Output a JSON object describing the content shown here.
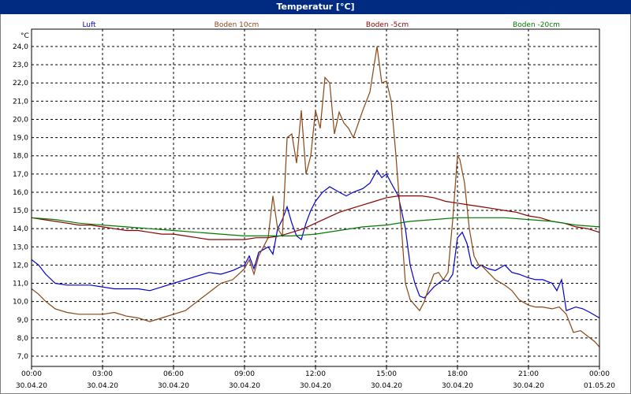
{
  "window_title": "Temperatur [°C]",
  "chart_data": {
    "type": "line",
    "title": "Temperatur [°C]",
    "ylabel": "°C",
    "ylim": [
      7.0,
      24.0
    ],
    "xlim": [
      0,
      24
    ],
    "y_ticks": [
      "7,0",
      "8,0",
      "9,0",
      "10,0",
      "11,0",
      "12,0",
      "13,0",
      "14,0",
      "15,0",
      "16,0",
      "17,0",
      "18,0",
      "19,0",
      "20,0",
      "21,0",
      "22,0",
      "23,0",
      "24,0"
    ],
    "x_ticks": [
      {
        "time": "00:00",
        "date": "30.04.20"
      },
      {
        "time": "03:00",
        "date": "30.04.20"
      },
      {
        "time": "06:00",
        "date": "30.04.20"
      },
      {
        "time": "09:00",
        "date": "30.04.20"
      },
      {
        "time": "12:00",
        "date": "30.04.20"
      },
      {
        "time": "15:00",
        "date": "30.04.20"
      },
      {
        "time": "18:00",
        "date": "30.04.20"
      },
      {
        "time": "21:00",
        "date": "30.04.20"
      },
      {
        "time": "00:00",
        "date": "01.05.20"
      }
    ],
    "grid": true,
    "legend_position": "top",
    "series": [
      {
        "name": "Luft",
        "color": "#0000cc",
        "x": [
          0,
          0.3,
          0.6,
          1,
          1.5,
          2,
          2.5,
          3,
          3.5,
          4,
          4.5,
          5,
          5.5,
          6,
          6.5,
          7,
          7.5,
          8,
          8.5,
          9,
          9.2,
          9.4,
          9.6,
          10,
          10.2,
          10.4,
          10.6,
          10.8,
          11,
          11.2,
          11.4,
          11.6,
          11.8,
          12,
          12.3,
          12.6,
          13,
          13.3,
          13.6,
          14,
          14.3,
          14.6,
          14.8,
          15,
          15.2,
          15.5,
          15.8,
          16,
          16.2,
          16.4,
          16.6,
          16.8,
          17,
          17.2,
          17.4,
          17.6,
          17.8,
          18,
          18.2,
          18.4,
          18.6,
          18.8,
          19,
          19.3,
          19.6,
          20,
          20.3,
          20.6,
          21,
          21.3,
          21.6,
          22,
          22.2,
          22.4,
          22.6,
          23,
          23.3,
          23.6,
          24
        ],
        "y": [
          12.3,
          12,
          11.5,
          11,
          10.9,
          10.9,
          10.9,
          10.8,
          10.7,
          10.7,
          10.7,
          10.6,
          10.8,
          11,
          11.2,
          11.4,
          11.6,
          11.5,
          11.7,
          12,
          12.5,
          11.8,
          12.7,
          13,
          12.6,
          14,
          14.5,
          15.2,
          14.3,
          13.6,
          13.4,
          14.3,
          15,
          15.5,
          16,
          16.3,
          16,
          15.8,
          16,
          16.2,
          16.5,
          17.2,
          16.8,
          17,
          16.5,
          15.8,
          14,
          12,
          11,
          10.3,
          10.2,
          10.5,
          10.8,
          11,
          11.2,
          11.1,
          11.5,
          13.5,
          13.8,
          13.2,
          12,
          11.8,
          12,
          11.8,
          11.7,
          12,
          11.6,
          11.5,
          11.3,
          11.2,
          11.2,
          11,
          10.6,
          11.2,
          9.5,
          9.7,
          9.6,
          9.4,
          9.1
        ]
      },
      {
        "name": "Boden 10cm",
        "color": "#8b4513",
        "x": [
          0,
          0.3,
          0.6,
          1,
          1.5,
          2,
          2.5,
          3,
          3.5,
          4,
          4.5,
          5,
          5.5,
          6,
          6.5,
          7,
          7.5,
          8,
          8.5,
          9,
          9.2,
          9.4,
          9.6,
          9.8,
          10,
          10.2,
          10.4,
          10.6,
          10.8,
          11,
          11.2,
          11.4,
          11.6,
          11.8,
          12,
          12.2,
          12.4,
          12.6,
          12.8,
          13,
          13.2,
          13.4,
          13.6,
          14,
          14.3,
          14.6,
          14.8,
          15,
          15.2,
          15.4,
          15.6,
          15.8,
          16,
          16.2,
          16.4,
          16.6,
          16.8,
          17,
          17.2,
          17.4,
          17.6,
          17.8,
          18,
          18.1,
          18.3,
          18.5,
          18.7,
          18.9,
          19,
          19.3,
          19.6,
          20,
          20.3,
          20.6,
          21,
          21.3,
          21.6,
          22,
          22.3,
          22.6,
          22.9,
          23.2,
          23.5,
          23.8,
          24
        ],
        "y": [
          10.7,
          10.4,
          10,
          9.6,
          9.4,
          9.3,
          9.3,
          9.3,
          9.4,
          9.2,
          9.1,
          8.9,
          9.1,
          9.3,
          9.5,
          10,
          10.5,
          11,
          11.2,
          11.8,
          12.3,
          11.5,
          12.5,
          13,
          13.5,
          15.8,
          14,
          13.6,
          19,
          19.2,
          17.6,
          20.5,
          17,
          18,
          20.5,
          19.5,
          22.3,
          22,
          19.2,
          20.4,
          19.8,
          19.5,
          19,
          20.5,
          21.5,
          24,
          22,
          22.1,
          21,
          18,
          14.6,
          11,
          10.1,
          9.8,
          9.5,
          10,
          10.8,
          11.5,
          11.6,
          11.2,
          11.6,
          14.5,
          18,
          17.8,
          16.5,
          14,
          12.5,
          12,
          12,
          11.6,
          11.2,
          10.9,
          10.6,
          10.1,
          9.8,
          9.7,
          9.7,
          9.6,
          9.7,
          9.3,
          8.3,
          8.4,
          8.1,
          7.8,
          7.5
        ]
      },
      {
        "name": "Boden -5cm",
        "color": "#8b0000",
        "x": [
          0,
          0.5,
          1,
          1.5,
          2,
          2.5,
          3,
          3.5,
          4,
          4.5,
          5,
          5.5,
          6,
          6.5,
          7,
          7.5,
          8,
          8.5,
          9,
          9.5,
          10,
          10.5,
          11,
          11.5,
          12,
          12.5,
          13,
          13.5,
          14,
          14.5,
          15,
          15.5,
          16,
          16.5,
          17,
          17.5,
          18,
          18.5,
          19,
          19.5,
          20,
          20.5,
          21,
          21.5,
          22,
          22.5,
          23,
          23.5,
          24
        ],
        "y": [
          14.6,
          14.5,
          14.4,
          14.3,
          14.2,
          14.2,
          14.1,
          14,
          13.9,
          13.9,
          13.8,
          13.7,
          13.7,
          13.6,
          13.5,
          13.4,
          13.4,
          13.4,
          13.4,
          13.5,
          13.5,
          13.6,
          13.8,
          14,
          14.3,
          14.6,
          14.9,
          15.1,
          15.3,
          15.5,
          15.7,
          15.8,
          15.8,
          15.8,
          15.7,
          15.5,
          15.4,
          15.3,
          15.2,
          15.1,
          15,
          14.9,
          14.7,
          14.6,
          14.4,
          14.3,
          14.1,
          14,
          13.8
        ]
      },
      {
        "name": "Boden -20cm",
        "color": "#007a00",
        "x": [
          0,
          1,
          2,
          3,
          4,
          5,
          6,
          7,
          8,
          9,
          10,
          11,
          12,
          13,
          14,
          15,
          16,
          17,
          18,
          19,
          20,
          21,
          22,
          23,
          24
        ],
        "y": [
          14.6,
          14.5,
          14.3,
          14.2,
          14.1,
          14,
          13.9,
          13.8,
          13.7,
          13.6,
          13.6,
          13.6,
          13.7,
          13.9,
          14.1,
          14.2,
          14.4,
          14.5,
          14.6,
          14.6,
          14.6,
          14.5,
          14.4,
          14.2,
          14.1
        ]
      }
    ]
  }
}
